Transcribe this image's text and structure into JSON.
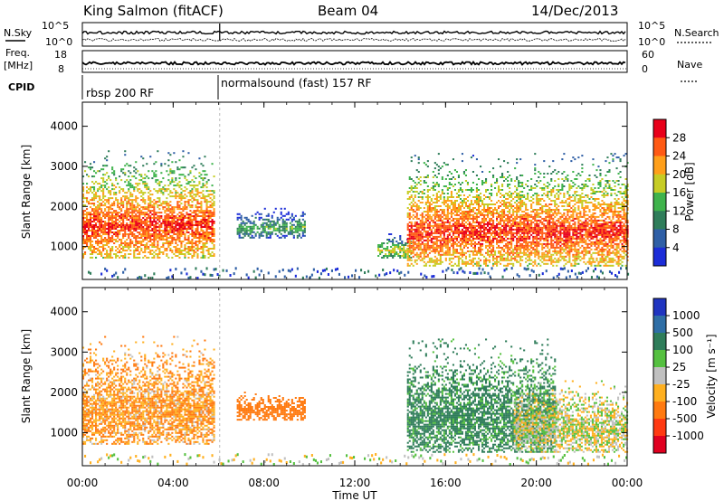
{
  "header": {
    "title": "King Salmon (fitACF)",
    "beam": "Beam 04",
    "date": "14/Dec/2013"
  },
  "params_panel": {
    "left_labels": [
      "N.Sky",
      "Freq.",
      "[MHz]",
      "CPID"
    ],
    "right_labels": [
      "N.Search",
      "Nave"
    ],
    "noise_ticks_left": [
      "10^5",
      "10^0"
    ],
    "noise_ticks_right": [
      "10^5",
      "10^0"
    ],
    "freq_ticks": [
      "18",
      "8"
    ],
    "nave_ticks": [
      "60",
      "0"
    ],
    "cpid_segments": [
      {
        "label": "rbsp 200 RF",
        "start_hour": 0
      },
      {
        "label": "normalsound (fast) 157 RF",
        "start_hour": 6
      }
    ]
  },
  "chart_data": [
    {
      "type": "heatmap",
      "name": "power",
      "ylabel": "Slant Range [km]",
      "xlabel": "",
      "ylim": [
        180,
        4600
      ],
      "xlim_hours": [
        0,
        24
      ],
      "yticks": [
        "1000",
        "2000",
        "3000",
        "4000"
      ],
      "colorbar": {
        "label": "Power [dB]",
        "ticks": [
          "28",
          "24",
          "20",
          "16",
          "12",
          "8",
          "4"
        ],
        "colors": [
          "#e8001a",
          "#ff5a14",
          "#ff9f1a",
          "#c6cc25",
          "#3fb34c",
          "#2f7d5a",
          "#2f5fa6",
          "#1c2dd8"
        ]
      },
      "echo_regions": [
        {
          "t_start": 0.0,
          "t_end": 5.8,
          "r_min": 700,
          "r_max": 3400,
          "level_db": 20
        },
        {
          "t_start": 6.8,
          "t_end": 9.8,
          "r_min": 1200,
          "r_max": 2000,
          "level_db": 6
        },
        {
          "t_start": 13.0,
          "t_end": 14.5,
          "r_min": 700,
          "r_max": 1300,
          "level_db": 12
        },
        {
          "t_start": 14.3,
          "t_end": 24.0,
          "r_min": 500,
          "r_max": 3300,
          "level_db": 20
        }
      ]
    },
    {
      "type": "heatmap",
      "name": "velocity",
      "ylabel": "Slant Range [km]",
      "xlabel": "Time UT",
      "ylim": [
        180,
        4600
      ],
      "xlim_hours": [
        0,
        24
      ],
      "yticks": [
        "1000",
        "2000",
        "3000",
        "4000"
      ],
      "xticks": [
        "00:00",
        "04:00",
        "08:00",
        "12:00",
        "16:00",
        "20:00",
        "00:00"
      ],
      "colorbar": {
        "label": "Velocity  [m s⁻¹]",
        "ticks": [
          "1000",
          "500",
          "100",
          "25",
          "-25",
          "-100",
          "-500",
          "-1000"
        ],
        "colors": [
          "#2035c0",
          "#2f6ea6",
          "#2f7d5a",
          "#55c040",
          "#c0c0c0",
          "#ffb020",
          "#ff7a10",
          "#ff3a12",
          "#e00020"
        ]
      },
      "echo_regions": [
        {
          "t_start": 0.0,
          "t_end": 5.8,
          "r_min": 700,
          "r_max": 3400,
          "velocity": -100
        },
        {
          "t_start": 6.8,
          "t_end": 9.8,
          "r_min": 1300,
          "r_max": 2000,
          "velocity": -300
        },
        {
          "t_start": 14.3,
          "t_end": 20.8,
          "r_min": 500,
          "r_max": 3300,
          "velocity": 150
        },
        {
          "t_start": 19.0,
          "t_end": 24.0,
          "r_min": 500,
          "r_max": 2300,
          "velocity": 0
        }
      ]
    }
  ]
}
